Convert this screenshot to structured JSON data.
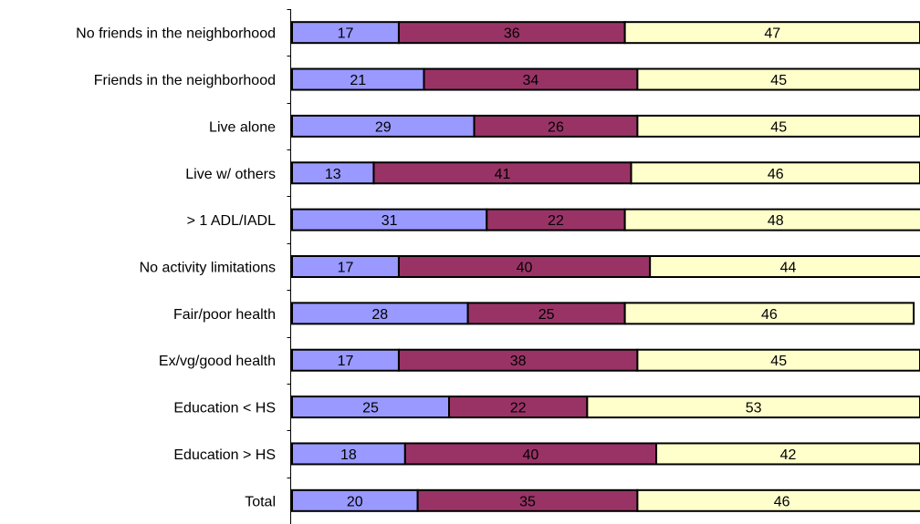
{
  "chart_data": {
    "type": "bar",
    "orientation": "horizontal",
    "stacked": true,
    "title": "",
    "xlabel": "",
    "ylabel": "",
    "xlim": [
      0,
      100
    ],
    "categories": [
      "No friends in the neighborhood",
      "Friends in the neighborhood",
      "Live alone",
      "Live w/ others",
      "> 1 ADL/IADL",
      "No activity limitations",
      "Fair/poor health",
      "Ex/vg/good health",
      "Education < HS",
      "Education > HS",
      "Total"
    ],
    "series": [
      {
        "color": "#9999ff",
        "values": [
          17,
          21,
          29,
          13,
          31,
          17,
          28,
          17,
          25,
          18,
          20
        ]
      },
      {
        "color": "#993366",
        "values": [
          36,
          34,
          26,
          41,
          22,
          40,
          25,
          38,
          22,
          40,
          35
        ]
      },
      {
        "color": "#ffffcc",
        "values": [
          47,
          45,
          45,
          46,
          48,
          44,
          46,
          45,
          53,
          42,
          46
        ]
      }
    ],
    "data_labels": true,
    "grid": false,
    "legend": "none"
  }
}
